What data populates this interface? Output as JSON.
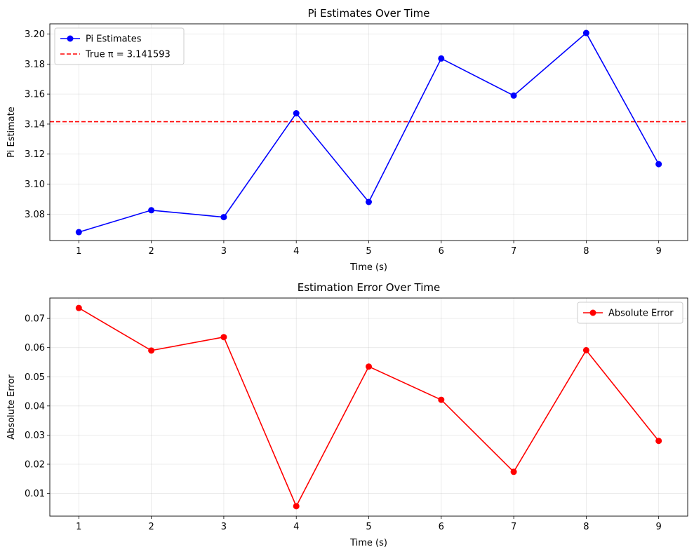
{
  "chart_data": [
    {
      "type": "line",
      "title": "Pi Estimates Over Time",
      "xlabel": "Time (s)",
      "ylabel": "Pi Estimate",
      "x": [
        1,
        2,
        3,
        4,
        5,
        6,
        7,
        8,
        9
      ],
      "xticks": [
        "1",
        "2",
        "3",
        "4",
        "5",
        "6",
        "7",
        "8",
        "9"
      ],
      "xlim": [
        0.6,
        9.4
      ],
      "ylim": [
        3.0624,
        3.2068
      ],
      "yticks": [
        "3.08",
        "3.10",
        "3.12",
        "3.14",
        "3.16",
        "3.18",
        "3.20"
      ],
      "ytick_values": [
        3.08,
        3.1,
        3.12,
        3.14,
        3.16,
        3.18,
        3.2
      ],
      "grid": true,
      "legend_position": "upper-left",
      "series": [
        {
          "name": "Pi Estimates",
          "color": "#0000ff",
          "style": "solid",
          "marker": "circle",
          "values": [
            3.068,
            3.0826,
            3.078,
            3.1472,
            3.0881,
            3.1837,
            3.159,
            3.2007,
            3.1133
          ]
        }
      ],
      "hlines": [
        {
          "name": "True π = 3.141593",
          "color": "#ff0000",
          "style": "dashed",
          "value": 3.141593
        }
      ]
    },
    {
      "type": "line",
      "title": "Estimation Error Over Time",
      "xlabel": "Time (s)",
      "ylabel": "Absolute Error",
      "x": [
        1,
        2,
        3,
        4,
        5,
        6,
        7,
        8,
        9
      ],
      "xticks": [
        "1",
        "2",
        "3",
        "4",
        "5",
        "6",
        "7",
        "8",
        "9"
      ],
      "xlim": [
        0.6,
        9.4
      ],
      "ylim": [
        0.0022,
        0.077
      ],
      "yticks": [
        "0.01",
        "0.02",
        "0.03",
        "0.04",
        "0.05",
        "0.06",
        "0.07"
      ],
      "ytick_values": [
        0.01,
        0.02,
        0.03,
        0.04,
        0.05,
        0.06,
        0.07
      ],
      "grid": true,
      "legend_position": "upper-right",
      "series": [
        {
          "name": "Absolute Error",
          "color": "#ff0000",
          "style": "solid",
          "marker": "circle",
          "values": [
            0.0736,
            0.059,
            0.0636,
            0.0056,
            0.0535,
            0.0421,
            0.0174,
            0.0591,
            0.028
          ]
        }
      ],
      "hlines": []
    }
  ]
}
